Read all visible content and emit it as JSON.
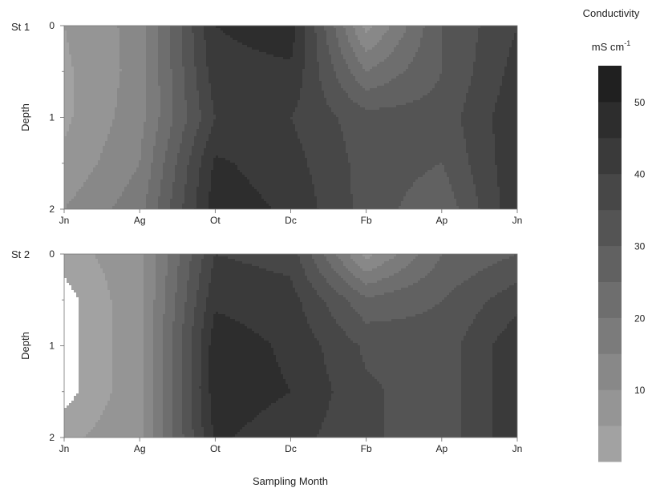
{
  "chart_data": [
    {
      "type": "heatmap",
      "subtype": "filled-contour",
      "panel_label": "St 1",
      "xlabel": "",
      "ylabel": "Depth",
      "x_ticks": [
        "Jn",
        "Ag",
        "Ot",
        "Dc",
        "Fb",
        "Ap",
        "Jn"
      ],
      "y_ticks": [
        "0",
        "1",
        "2"
      ],
      "ylim": [
        0,
        2
      ],
      "y_inverted": true,
      "z_grid": {
        "depths": [
          0,
          0.5,
          1,
          1.5,
          2
        ],
        "values": [
          [
            5,
            12,
            45,
            48,
            8,
            30,
            40
          ],
          [
            4,
            12,
            43,
            44,
            20,
            30,
            42
          ],
          [
            4,
            13,
            40,
            40,
            32,
            32,
            44
          ],
          [
            6,
            15,
            46,
            42,
            33,
            30,
            44
          ],
          [
            10,
            18,
            48,
            44,
            33,
            26,
            44
          ]
        ]
      }
    },
    {
      "type": "heatmap",
      "subtype": "filled-contour",
      "panel_label": "St 2",
      "xlabel": "Sampling Month",
      "ylabel": "Depth",
      "x_ticks": [
        "Jn",
        "Ag",
        "Ot",
        "Dc",
        "Fb",
        "Ap",
        "Jn"
      ],
      "y_ticks": [
        "0",
        "1",
        "2"
      ],
      "ylim": [
        0,
        2
      ],
      "y_inverted": true,
      "z_grid": {
        "depths": [
          0,
          0.5,
          1,
          1.5,
          2
        ],
        "values": [
          [
            3,
            8,
            40,
            38,
            8,
            25,
            30
          ],
          [
            0,
            8,
            44,
            42,
            26,
            30,
            38
          ],
          [
            0,
            8,
            48,
            44,
            34,
            32,
            44
          ],
          [
            0,
            8,
            48,
            45,
            36,
            32,
            44
          ],
          [
            4,
            8,
            46,
            42,
            36,
            32,
            44
          ]
        ]
      }
    }
  ],
  "colorbar": {
    "title": "Conductivity",
    "unit_base": "mS cm",
    "unit_exp": "-1",
    "min": 0,
    "max": 55,
    "step": 5,
    "ticks": [
      "10",
      "20",
      "30",
      "40",
      "50"
    ],
    "tick_values": [
      10,
      20,
      30,
      40,
      50
    ],
    "color_low": "#a8a8a8",
    "color_high": "#1a1a1a"
  }
}
